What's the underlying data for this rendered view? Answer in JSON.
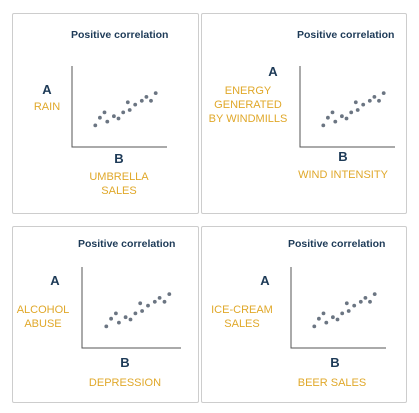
{
  "colors": {
    "title": "#1d3a57",
    "label": "#e0a82a",
    "dot": "#6b7582",
    "axis": "#555555",
    "border": "#cdcdcd"
  },
  "panels": [
    {
      "title": "Positive correlation",
      "y_letter": "A",
      "x_letter": "B",
      "y_label_lines": [
        "RAIN"
      ],
      "x_label_lines": [
        "UMBRELLA",
        "SALES"
      ]
    },
    {
      "title": "Positive correlation",
      "y_letter": "A",
      "x_letter": "B",
      "y_label_lines": [
        "ENERGY",
        "GENERATED",
        "BY WINDMILLS"
      ],
      "x_label_lines": [
        "WIND INTENSITY"
      ]
    },
    {
      "title": "Positive correlation",
      "y_letter": "A",
      "x_letter": "B",
      "y_label_lines": [
        "ALCOHOL",
        "ABUSE"
      ],
      "x_label_lines": [
        "DEPRESSION"
      ]
    },
    {
      "title": "Positive correlation",
      "y_letter": "A",
      "x_letter": "B",
      "y_label_lines": [
        "ICE-CREAM",
        "SALES"
      ],
      "x_label_lines": [
        "BEER SALES"
      ]
    }
  ],
  "scatter": [
    [
      0.25,
      0.28
    ],
    [
      0.3,
      0.38
    ],
    [
      0.38,
      0.33
    ],
    [
      0.45,
      0.4
    ],
    [
      0.5,
      0.37
    ],
    [
      0.55,
      0.45
    ],
    [
      0.62,
      0.48
    ],
    [
      0.68,
      0.55
    ],
    [
      0.75,
      0.6
    ],
    [
      0.8,
      0.65
    ],
    [
      0.85,
      0.6
    ],
    [
      0.9,
      0.7
    ],
    [
      0.6,
      0.58
    ],
    [
      0.35,
      0.45
    ]
  ]
}
